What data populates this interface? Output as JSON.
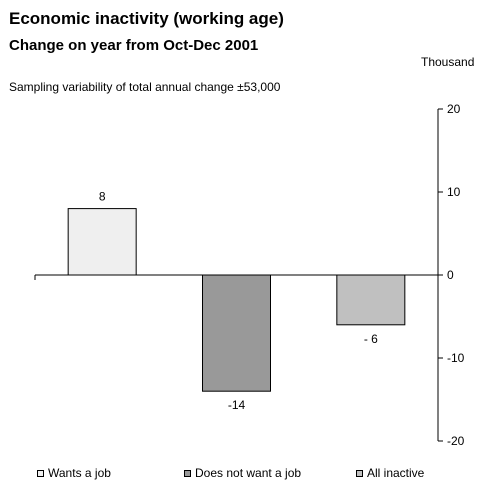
{
  "title": "Economic inactivity (working age)",
  "subtitle": "Change on year from Oct-Dec 2001",
  "unit": "Thousand",
  "note": "Sampling variability of total annual change  ±53,000",
  "chart_data": {
    "type": "bar",
    "categories": [
      "Wants a job",
      "Does not want a job",
      "All inactive"
    ],
    "values": [
      8,
      -14,
      -6
    ],
    "data_labels": [
      "8",
      "-14",
      "- 6"
    ],
    "ylim": [
      -20,
      20
    ],
    "yticks": [
      20,
      10,
      0,
      -10,
      -20
    ],
    "grid": false,
    "legend_position": "bottom",
    "colors": [
      "#efefef",
      "#999999",
      "#c0c0c0"
    ],
    "axis_side": "right"
  }
}
